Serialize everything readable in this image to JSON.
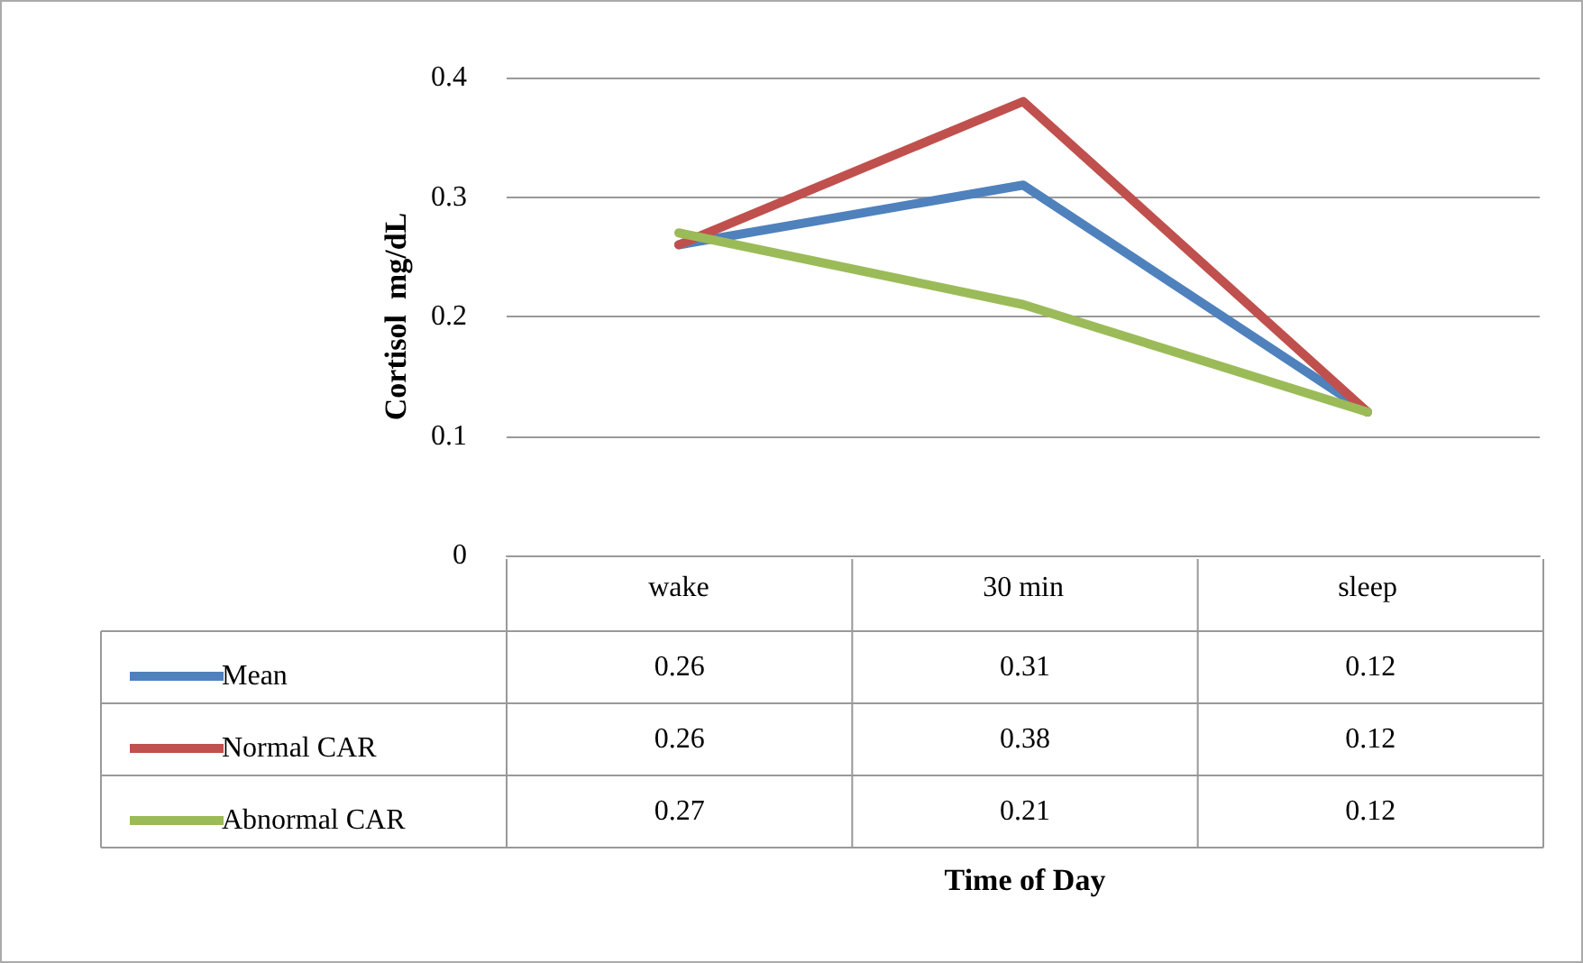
{
  "chart_data": {
    "type": "line",
    "annotations": [
      "Time of Day"
    ],
    "ylabel": "Cortisol  mg/dL",
    "categories": [
      "wake",
      "30 min",
      "sleep"
    ],
    "series": [
      {
        "name": "Mean",
        "color": "#4f81bd",
        "values": [
          0.26,
          0.31,
          0.12
        ]
      },
      {
        "name": "Normal CAR",
        "color": "#c0504d",
        "values": [
          0.26,
          0.38,
          0.12
        ]
      },
      {
        "name": "Abnormal CAR",
        "color": "#9bbb59",
        "values": [
          0.27,
          0.21,
          0.12
        ]
      }
    ],
    "ylim": [
      0,
      0.4
    ],
    "yticks": [
      0,
      0.1,
      0.2,
      0.3,
      0.4
    ],
    "grid": "y",
    "legend": "bottom",
    "data_labels": true,
    "marker": "none",
    "line_style": "solid"
  }
}
